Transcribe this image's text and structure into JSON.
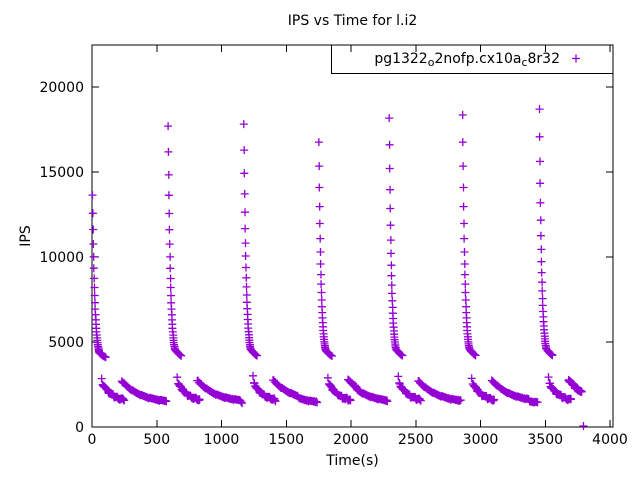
{
  "chart_data": {
    "type": "scatter",
    "title": "IPS vs Time for l.i2",
    "xlabel": "Time(s)",
    "ylabel": "IPS",
    "xlim": [
      0,
      4020
    ],
    "ylim": [
      0,
      22470
    ],
    "xticks": [
      0,
      500,
      1000,
      1500,
      2000,
      2500,
      3000,
      3500,
      4000
    ],
    "yticks": [
      0,
      5000,
      10000,
      15000,
      20000
    ],
    "grid": false,
    "background_color": "#ffffff",
    "axes_color": "#000000",
    "legend": {
      "position": "top-right-inside",
      "boxed": true,
      "marker": "+",
      "marker_color": "#9400d3",
      "label_parts": [
        {
          "text": "pg1322",
          "subscript": false
        },
        {
          "text": "o",
          "subscript": true
        },
        {
          "text": "2nofp.cx10a",
          "subscript": false
        },
        {
          "text": "c",
          "subscript": true
        },
        {
          "text": "8r32",
          "subscript": false
        }
      ]
    },
    "series": [
      {
        "name": "pg1322o2nofp.cx10ac8r32",
        "marker": "+",
        "color": "#9400d3",
        "pattern": {
          "description": "Seven periodic load cycles: each begins with a near-vertical burst decaying from its peak IPS down to about 4400, a transition point near 2950, then two overlapping slowly-decaying low bands (about 2550 to 1600, then 2750 to 1450) lasting until the next burst; run ends with one point near zero.",
          "spike": {
            "points": 34,
            "interval_s": 2,
            "floor_ips": 3900,
            "decay": 0.89
          },
          "transition_point": {
            "offset_s": 70,
            "value_ips": 2950
          },
          "arc1": {
            "points": 20,
            "start_offset_s": 78,
            "end_offset_s": 240,
            "base_ips": 1500,
            "amp_ips": 1050,
            "tau_s": 75
          },
          "arc2": {
            "points": 26,
            "start_offset_s": 225,
            "end_margin_s": 20,
            "base_ips": 1350,
            "amp_ips": 1400,
            "tau_s": 160
          },
          "cycles": [
            {
              "start_s": 5,
              "peak_ips": 13640,
              "duration_s": 583
            },
            {
              "start_s": 588,
              "peak_ips": 17700,
              "duration_s": 585
            },
            {
              "start_s": 1173,
              "peak_ips": 17820,
              "duration_s": 579
            },
            {
              "start_s": 1752,
              "peak_ips": 16760,
              "duration_s": 543
            },
            {
              "start_s": 2295,
              "peak_ips": 18170,
              "duration_s": 567
            },
            {
              "start_s": 2862,
              "peak_ips": 18350,
              "duration_s": 593
            },
            {
              "start_s": 3455,
              "peak_ips": 18700,
              "duration_s": 345
            }
          ],
          "final_point": [
            3795,
            60
          ]
        }
      }
    ]
  }
}
